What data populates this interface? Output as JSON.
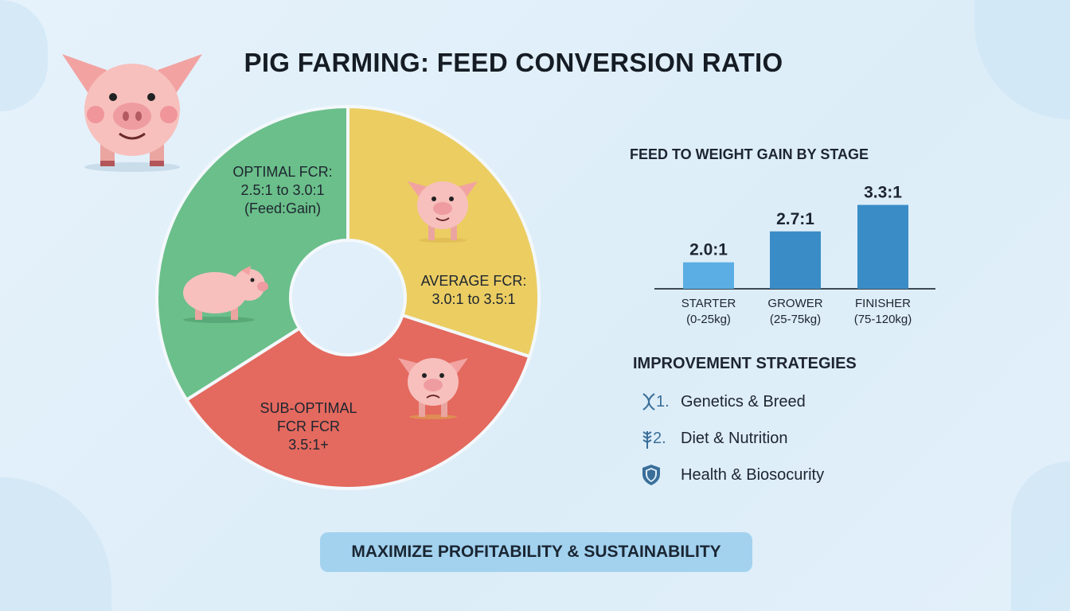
{
  "title": "PIG FARMING: FEED CONVERSION RATIO",
  "colors": {
    "optimal": "#6bbf8a",
    "average": "#ebcd62",
    "suboptimal": "#e4695e",
    "bar_light": "#5aaee3",
    "bar": "#3a8cc6"
  },
  "chart_data": [
    {
      "type": "pie",
      "donut": true,
      "slices": [
        {
          "label_lines": [
            "AVERAGE FCR:",
            "3.0:1 to 3.5:1"
          ],
          "share_pct": 30,
          "color": "#ebcd62",
          "icon": "standing-pig"
        },
        {
          "label_lines": [
            "SUB-OPTIMAL",
            "FCR FCR",
            "3.5:1+"
          ],
          "share_pct": 36,
          "color": "#e4695e",
          "icon": "sad-pig"
        },
        {
          "label_lines": [
            "OPTIMAL FCR:",
            "2.5:1 to 3.0:1",
            "(Feed:Gain)"
          ],
          "share_pct": 34,
          "color": "#6bbf8a",
          "icon": "lying-pig"
        }
      ]
    },
    {
      "type": "bar",
      "title": "FEED TO WEIGHT GAIN BY STAGE",
      "categories": [
        [
          "STARTER",
          "(0-25kg)"
        ],
        [
          "GROWER",
          "(25-75kg)"
        ],
        [
          "FINISHER",
          "(75-120kg)"
        ]
      ],
      "values": [
        2.0,
        2.7,
        3.3
      ],
      "data_labels": [
        "2.0:1",
        "2.7:1",
        "3.3:1"
      ],
      "ylim": [
        1.4,
        3.5
      ]
    }
  ],
  "strategies": {
    "title": "IMPROVEMENT STRATEGIES",
    "items": [
      {
        "icon": "dna-icon",
        "number": "1.",
        "label": "Genetics & Breed"
      },
      {
        "icon": "wheat-icon",
        "number": "2.",
        "label": "Diet & Nutrition"
      },
      {
        "icon": "shield-icon",
        "number": "",
        "label": "Health & Biosocurity"
      }
    ]
  },
  "banner": "MAXIMIZE PROFITABILITY & SUSTAINABILITY"
}
